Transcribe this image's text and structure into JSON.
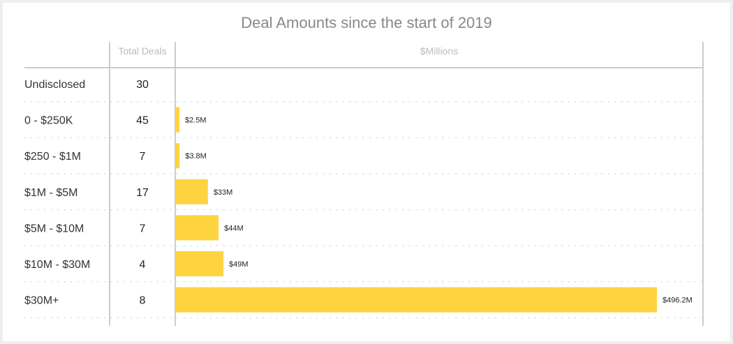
{
  "chart_data": {
    "type": "bar",
    "orientation": "horizontal",
    "title": "Deal Amounts since the start of 2019",
    "count_column_header": "Total Deals",
    "value_column_header": "$Millions",
    "categories": [
      "Undisclosed",
      "0 - $250K",
      "$250 - $1M",
      "$1M - $5M",
      "$5M - $10M",
      "$10M - $30M",
      "$30M+"
    ],
    "total_deals": [
      30,
      45,
      7,
      17,
      7,
      4,
      8
    ],
    "values": [
      null,
      2.5,
      3.8,
      33,
      44,
      49,
      496.2
    ],
    "data_labels": [
      "",
      "$2.5M",
      "$3.8M",
      "$33M",
      "$44M",
      "$49M",
      "$496.2M"
    ],
    "xlim": [
      0,
      496.2
    ],
    "grid": false,
    "bar_color": "#FDD33F"
  }
}
